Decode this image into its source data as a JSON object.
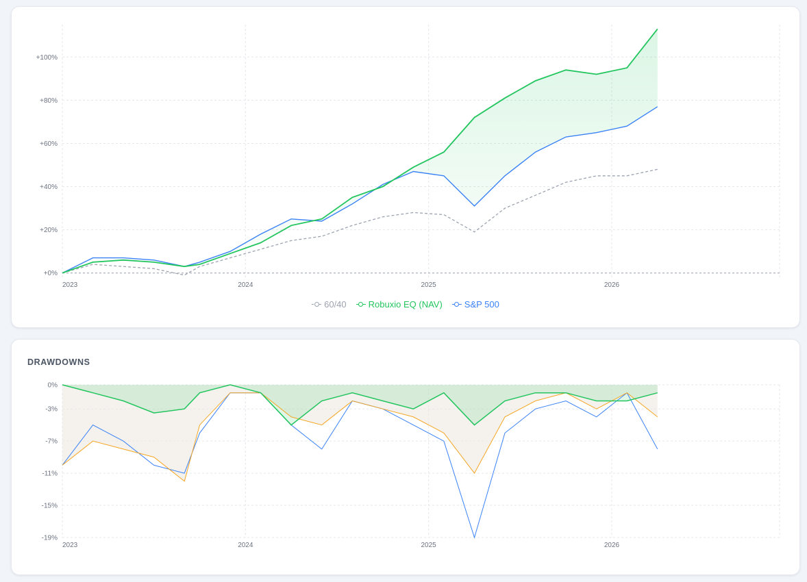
{
  "performance": {
    "legend": [
      {
        "label": "60/40",
        "color": "#9ca3af",
        "dashed": true
      },
      {
        "label": "Robuxio EQ (NAV)",
        "color": "#22c55e",
        "dashed": false
      },
      {
        "label": "S&P 500",
        "color": "#3b82f6",
        "dashed": false
      }
    ]
  },
  "drawdowns": {
    "title": "DRAWDOWNS"
  },
  "colors": {
    "robuxio": "#22c55e",
    "sp500": "#3b82f6",
    "sixty_forty": "#9ca3af",
    "dd_orange": "#f5a623",
    "grid": "#e5e7eb"
  },
  "chart_data": [
    {
      "type": "line",
      "title": "",
      "x_tick_labels": [
        "2023",
        "2024",
        "2025",
        "2026"
      ],
      "y_tick_labels": [
        "+0%",
        "+20%",
        "+40%",
        "+60%",
        "+80%",
        "+100%"
      ],
      "y_ticks": [
        0,
        20,
        40,
        60,
        80,
        100
      ],
      "xlim": [
        "2023-01-01",
        "2026-12-01"
      ],
      "ylim": [
        -2,
        115
      ],
      "grid": true,
      "legend_position": "bottom-center",
      "x": [
        "2023-01",
        "2023-03",
        "2023-05",
        "2023-07",
        "2023-09",
        "2023-10",
        "2023-12",
        "2024-02",
        "2024-04",
        "2024-06",
        "2024-08",
        "2024-10",
        "2024-12",
        "2025-02",
        "2025-04",
        "2025-06",
        "2025-08",
        "2025-10",
        "2025-12",
        "2026-02",
        "2026-04"
      ],
      "series": [
        {
          "name": "Robuxio EQ (NAV)",
          "values": [
            0,
            5,
            6,
            5,
            3,
            4,
            9,
            14,
            22,
            25,
            35,
            40,
            49,
            56,
            72,
            81,
            89,
            94,
            92,
            95,
            113
          ]
        },
        {
          "name": "S&P 500",
          "values": [
            0,
            7,
            7,
            6,
            3,
            5,
            10,
            18,
            25,
            24,
            32,
            41,
            47,
            45,
            31,
            45,
            56,
            63,
            65,
            68,
            77
          ]
        },
        {
          "name": "60/40",
          "values": [
            0,
            4,
            3,
            2,
            -1,
            3,
            7,
            11,
            15,
            17,
            22,
            26,
            28,
            27,
            19,
            30,
            36,
            42,
            45,
            45,
            48
          ]
        }
      ]
    },
    {
      "type": "area",
      "title": "DRAWDOWNS",
      "x_tick_labels": [
        "2023",
        "2024",
        "2025",
        "2026"
      ],
      "y_tick_labels": [
        "0%",
        "-3%",
        "-7%",
        "-11%",
        "-15%",
        "-19%"
      ],
      "y_ticks": [
        0,
        -3,
        -7,
        -11,
        -15,
        -19
      ],
      "xlim": [
        "2023-01-01",
        "2026-12-01"
      ],
      "ylim": [
        -19,
        0
      ],
      "grid": true,
      "x": [
        "2023-01",
        "2023-03",
        "2023-05",
        "2023-07",
        "2023-09",
        "2023-10",
        "2023-12",
        "2024-02",
        "2024-04",
        "2024-06",
        "2024-08",
        "2024-10",
        "2024-12",
        "2025-02",
        "2025-04",
        "2025-06",
        "2025-08",
        "2025-10",
        "2025-12",
        "2026-02",
        "2026-04"
      ],
      "series": [
        {
          "name": "",
          "color": "#22c55e",
          "values": [
            0,
            -1,
            -2,
            -3.5,
            -3,
            -1,
            0,
            -1,
            -5,
            -2,
            -1,
            -2,
            -3,
            -1,
            -5,
            -2,
            -1,
            -1,
            -2,
            -2,
            -1
          ]
        },
        {
          "name": "",
          "color": "#3b82f6",
          "values": [
            -10,
            -5,
            -7,
            -10,
            -11,
            -6,
            -1,
            -1,
            -5,
            -8,
            -2,
            -3,
            -5,
            -7,
            -19,
            -6,
            -3,
            -2,
            -4,
            -1,
            -8
          ]
        },
        {
          "name": "",
          "color": "#f5a623",
          "values": [
            -10,
            -7,
            -8,
            -9,
            -12,
            -5,
            -1,
            -1,
            -4,
            -5,
            -2,
            -3,
            -4,
            -6,
            -11,
            -4,
            -2,
            -1,
            -3,
            -1,
            -4
          ]
        }
      ]
    }
  ]
}
